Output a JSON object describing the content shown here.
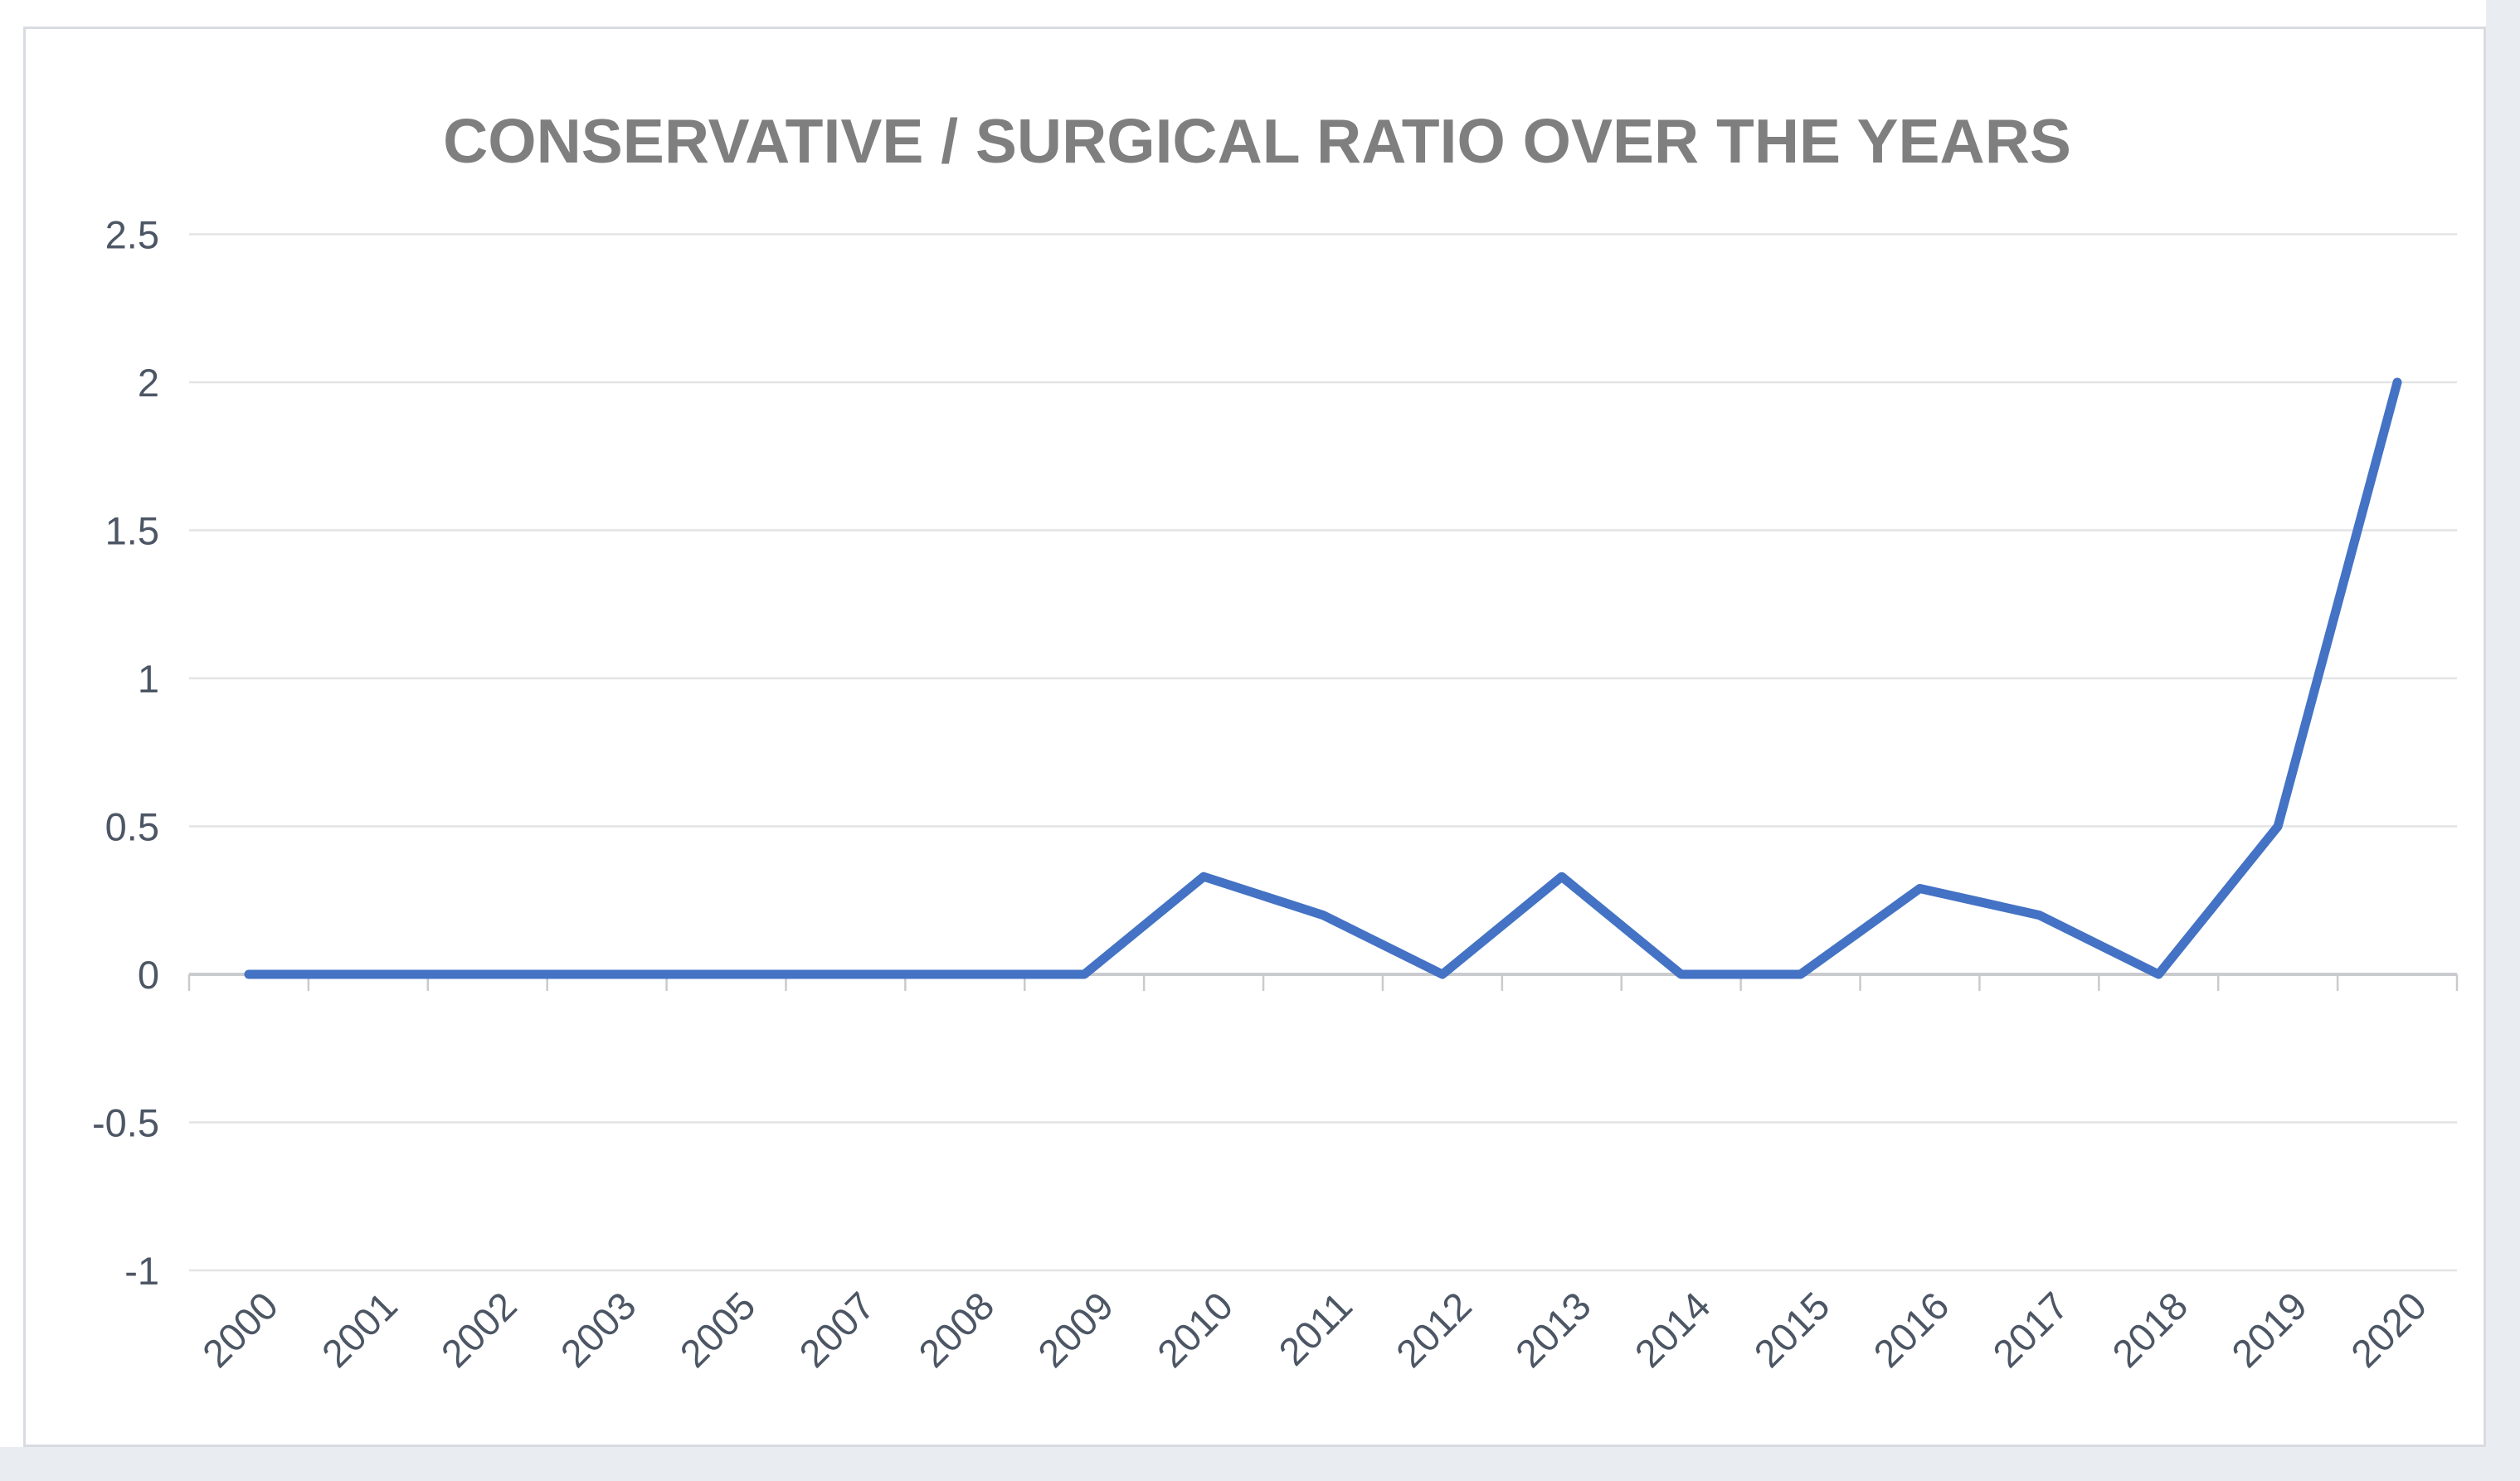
{
  "chart": {
    "title": "CONSERVATIVE / SURGICAL RATIO OVER THE YEARS"
  },
  "chart_data": {
    "type": "line",
    "title": "CONSERVATIVE / SURGICAL RATIO OVER THE YEARS",
    "categories": [
      "2000",
      "2001",
      "2002",
      "2003",
      "2005",
      "2007",
      "2008",
      "2009",
      "2010",
      "2011",
      "2012",
      "2013",
      "2014",
      "2015",
      "2016",
      "2017",
      "2018",
      "2019",
      "2020"
    ],
    "series": [
      {
        "name": "Conservative / Surgical ratio",
        "values": [
          0,
          0,
          0,
          0,
          0,
          0,
          0,
          0,
          0.33,
          0.2,
          0,
          0.33,
          0,
          0,
          0.29,
          0.2,
          0,
          0.5,
          2
        ]
      }
    ],
    "xlabel": "",
    "ylabel": "",
    "ylim": [
      -1,
      2.5
    ],
    "ytick_step": 0.5,
    "ytick_labels": [
      "2.5",
      "2",
      "1.5",
      "1",
      "0.5",
      "0",
      "-0.5",
      "-1"
    ],
    "grid": "horizontal",
    "legend_position": "none",
    "x_label_rotation_deg": 45,
    "colors": {
      "line": "#4472C4",
      "title_text": "#7f7f7f",
      "axis_label_text": "#4c5664",
      "gridline": "#e3e4e6",
      "axis_line": "#c9cbce",
      "tick_mark": "#c9cbce",
      "frame_border": "#d8dce1",
      "frame_background": "#ffffff",
      "outer_background": "#e9edf2"
    }
  }
}
